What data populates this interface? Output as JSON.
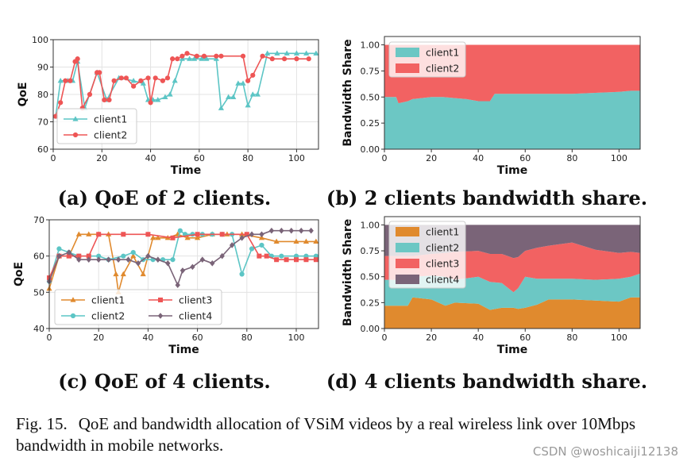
{
  "colors": {
    "orange": "#E08A2E",
    "teal": "#6CC7C4",
    "salmon": "#F26262",
    "purple": "#7A6478",
    "qoe_line_teal": "#5CC5C5",
    "qoe_line_red": "#EE5555"
  },
  "subcaptions": {
    "a": "(a) QoE of 2 clients.",
    "b": "(b) 2 clients bandwidth share.",
    "c": "(c) QoE of 4 clients.",
    "d": "(d) 4 clients bandwidth share."
  },
  "caption": {
    "label": "Fig. 15.",
    "text": "QoE and bandwidth allocation of VSiM videos by a real wireless link over 10Mbps bandwidth in mobile networks."
  },
  "watermark": "CSDN @woshicaiji12138",
  "chart_data": [
    {
      "id": "a",
      "type": "line",
      "title": "",
      "xlabel": "Time",
      "ylabel": "QoE",
      "xlim": [
        0,
        109
      ],
      "ylim": [
        60,
        100
      ],
      "xticks": [
        0,
        20,
        40,
        60,
        80,
        100
      ],
      "yticks": [
        60,
        70,
        80,
        90,
        100
      ],
      "grid": true,
      "legend": "lower-left",
      "series": [
        {
          "name": "client1",
          "marker": "triangle",
          "color": "#5CC5C5",
          "x": [
            1,
            3,
            6,
            8,
            10,
            13,
            18,
            22,
            27,
            33,
            37,
            39,
            41,
            43,
            46,
            48,
            50,
            53,
            56,
            58,
            61,
            63,
            67,
            69,
            72,
            74,
            76,
            78,
            80,
            82,
            84,
            88,
            92,
            96,
            100,
            104,
            108
          ],
          "y": [
            72,
            85,
            85,
            85,
            92,
            75,
            88,
            78,
            86,
            85,
            84,
            78,
            78,
            78,
            79,
            80,
            85,
            93,
            93,
            93,
            93,
            93,
            93,
            75,
            79,
            79,
            84,
            84,
            76,
            80,
            80,
            95,
            95,
            95,
            95,
            95,
            95
          ]
        },
        {
          "name": "client2",
          "marker": "circle",
          "color": "#EE5555",
          "x": [
            1,
            3,
            5,
            7,
            9,
            10,
            12,
            15,
            18,
            19,
            21,
            23,
            25,
            28,
            30,
            33,
            36,
            39,
            40,
            42,
            45,
            47,
            49,
            51,
            53,
            55,
            59,
            62,
            67,
            69,
            78,
            80,
            82,
            86,
            90,
            95,
            100,
            105
          ],
          "y": [
            72,
            77,
            85,
            85,
            92,
            93,
            75,
            80,
            88,
            88,
            78,
            78,
            85,
            86,
            86,
            83,
            85,
            86,
            77,
            86,
            85,
            86,
            93,
            93,
            94,
            95,
            94,
            94,
            94,
            94,
            94,
            85,
            87,
            94,
            93,
            93,
            93,
            93
          ]
        }
      ]
    },
    {
      "id": "b",
      "type": "area",
      "title": "",
      "xlabel": "Time",
      "ylabel": "Bandwidth Share",
      "xlim": [
        0,
        109
      ],
      "ylim": [
        0,
        1.08
      ],
      "xticks": [
        0,
        20,
        40,
        60,
        80,
        100
      ],
      "yticks": [
        0.0,
        0.25,
        0.5,
        0.75,
        1.0
      ],
      "legend": "top-left",
      "x": [
        0,
        5,
        6,
        10,
        12,
        20,
        25,
        30,
        35,
        40,
        45,
        47,
        55,
        60,
        70,
        80,
        90,
        100,
        105,
        109
      ],
      "series": [
        {
          "name": "client1",
          "color": "#6CC7C4",
          "values": [
            0.5,
            0.5,
            0.44,
            0.46,
            0.48,
            0.5,
            0.5,
            0.49,
            0.48,
            0.46,
            0.46,
            0.53,
            0.53,
            0.53,
            0.53,
            0.53,
            0.54,
            0.55,
            0.56,
            0.56
          ]
        },
        {
          "name": "client2",
          "color": "#F26262",
          "values": [
            0.5,
            0.5,
            0.56,
            0.54,
            0.52,
            0.5,
            0.5,
            0.51,
            0.52,
            0.54,
            0.54,
            0.47,
            0.47,
            0.47,
            0.47,
            0.47,
            0.46,
            0.45,
            0.44,
            0.44
          ]
        }
      ]
    },
    {
      "id": "c",
      "type": "line",
      "title": "",
      "xlabel": "Time",
      "ylabel": "QoE",
      "xlim": [
        0,
        109
      ],
      "ylim": [
        40,
        70
      ],
      "xticks": [
        0,
        20,
        40,
        60,
        80,
        100
      ],
      "yticks": [
        40,
        50,
        60,
        70
      ],
      "grid": true,
      "legend": "lower-center",
      "series": [
        {
          "name": "client1",
          "marker": "triangle",
          "color": "#E08A2E",
          "x": [
            0,
            4,
            8,
            12,
            16,
            20,
            24,
            27,
            28,
            30,
            34,
            38,
            42,
            44,
            48,
            52,
            56,
            60,
            66,
            72,
            78,
            86,
            92,
            100,
            104,
            108
          ],
          "y": [
            51,
            60,
            60,
            66,
            66,
            66,
            66,
            55,
            50,
            55,
            60,
            55,
            65,
            65,
            65,
            66,
            65,
            65,
            66,
            66,
            66,
            65,
            64,
            64,
            64,
            64
          ]
        },
        {
          "name": "client2",
          "marker": "circle",
          "color": "#5CC5C5",
          "x": [
            0,
            4,
            8,
            12,
            16,
            20,
            24,
            30,
            34,
            38,
            42,
            46,
            50,
            53,
            55,
            58,
            62,
            66,
            70,
            74,
            78,
            82,
            86,
            90,
            94,
            100,
            104,
            108
          ],
          "y": [
            53,
            62,
            61,
            60,
            60,
            60,
            59,
            60,
            61,
            59,
            59,
            59,
            59,
            67,
            66,
            66,
            66,
            66,
            66,
            66,
            55,
            62,
            63,
            60,
            60,
            60,
            60,
            60
          ]
        },
        {
          "name": "client3",
          "marker": "square",
          "color": "#EE5555",
          "x": [
            0,
            4,
            8,
            12,
            16,
            20,
            30,
            40,
            50,
            60,
            70,
            80,
            85,
            88,
            92,
            96,
            100,
            104,
            108
          ],
          "y": [
            54,
            60,
            60,
            60,
            60,
            66,
            66,
            66,
            65,
            66,
            66,
            66,
            60,
            60,
            59,
            59,
            59,
            59,
            59
          ]
        },
        {
          "name": "client4",
          "marker": "diamond",
          "color": "#7A6478",
          "x": [
            0,
            4,
            8,
            12,
            16,
            20,
            24,
            28,
            32,
            36,
            40,
            44,
            48,
            52,
            54,
            58,
            62,
            66,
            70,
            74,
            78,
            82,
            86,
            90,
            94,
            98,
            102,
            106
          ],
          "y": [
            53,
            60,
            61,
            59,
            59,
            59,
            59,
            59,
            59,
            58,
            60,
            59,
            58,
            52,
            56,
            57,
            59,
            58,
            60,
            63,
            65,
            66,
            66,
            67,
            67,
            67,
            67,
            67
          ]
        }
      ]
    },
    {
      "id": "d",
      "type": "area",
      "title": "",
      "xlabel": "Time",
      "ylabel": "Bandwidth Share",
      "xlim": [
        0,
        109
      ],
      "ylim": [
        0,
        1.08
      ],
      "xticks": [
        0,
        20,
        40,
        60,
        80,
        100
      ],
      "yticks": [
        0.0,
        0.25,
        0.5,
        0.75,
        1.0
      ],
      "legend": "top-left",
      "x": [
        0,
        10,
        12,
        20,
        26,
        30,
        40,
        45,
        50,
        55,
        57,
        60,
        65,
        70,
        80,
        90,
        100,
        105,
        109
      ],
      "series": [
        {
          "name": "client1",
          "color": "#E08A2E",
          "values": [
            0.22,
            0.22,
            0.3,
            0.28,
            0.22,
            0.25,
            0.24,
            0.18,
            0.2,
            0.2,
            0.19,
            0.2,
            0.23,
            0.28,
            0.28,
            0.27,
            0.26,
            0.3,
            0.3
          ]
        },
        {
          "name": "client2",
          "color": "#6CC7C4",
          "values": [
            0.25,
            0.25,
            0.2,
            0.23,
            0.28,
            0.22,
            0.26,
            0.27,
            0.24,
            0.15,
            0.2,
            0.3,
            0.25,
            0.2,
            0.2,
            0.2,
            0.22,
            0.2,
            0.23
          ]
        },
        {
          "name": "client3",
          "color": "#F26262",
          "values": [
            0.23,
            0.23,
            0.2,
            0.21,
            0.23,
            0.27,
            0.25,
            0.27,
            0.28,
            0.33,
            0.3,
            0.25,
            0.3,
            0.32,
            0.35,
            0.29,
            0.25,
            0.24,
            0.2
          ]
        },
        {
          "name": "client4",
          "color": "#7A6478",
          "values": [
            0.3,
            0.3,
            0.3,
            0.28,
            0.27,
            0.26,
            0.25,
            0.28,
            0.28,
            0.32,
            0.31,
            0.25,
            0.22,
            0.2,
            0.17,
            0.24,
            0.27,
            0.26,
            0.27
          ]
        }
      ]
    }
  ]
}
